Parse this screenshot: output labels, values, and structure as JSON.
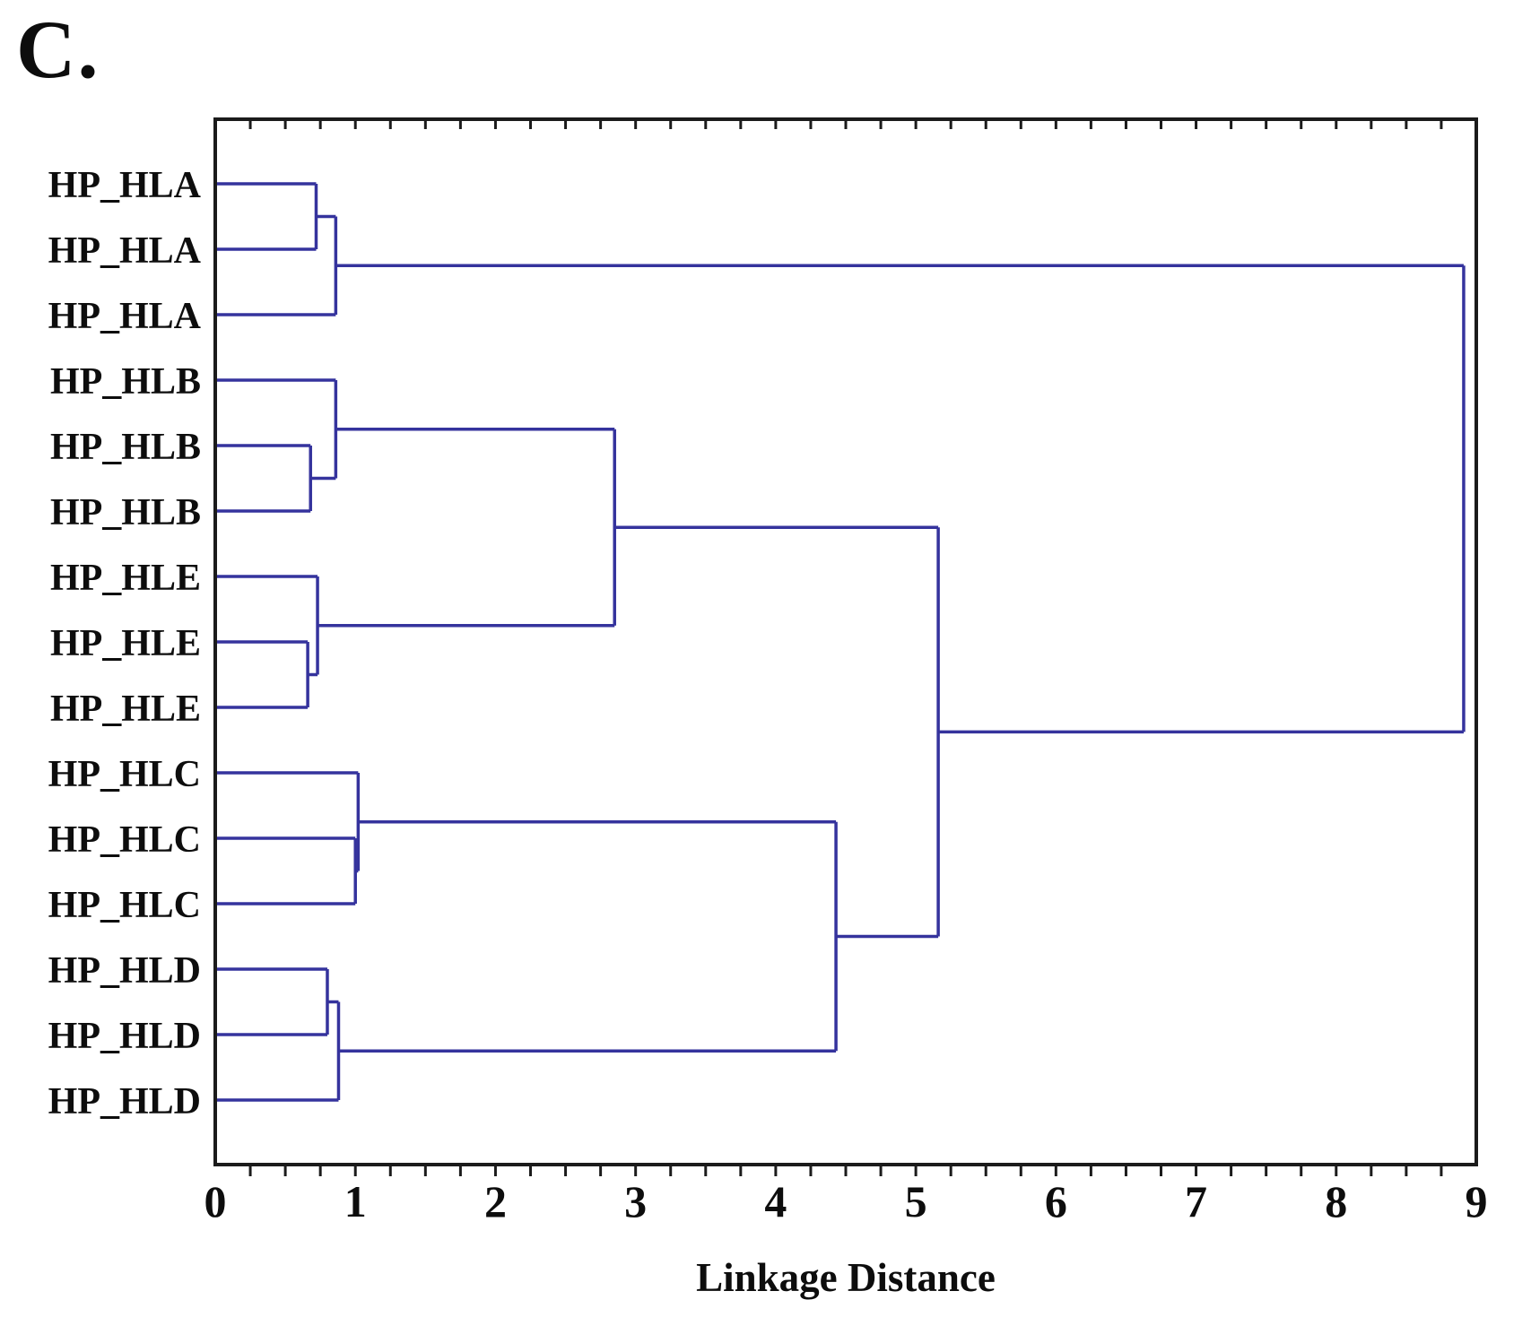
{
  "panel_label": "C.",
  "colors": {
    "link": "#35339d",
    "axis": "#1b1b1b",
    "text": "#0d0d0d",
    "background": "#ffffff"
  },
  "chart_data": {
    "type": "dendrogram",
    "orientation": "horizontal-root-right",
    "xlabel": "Linkage Distance",
    "xlim": [
      0,
      9
    ],
    "x_major_ticks": [
      0,
      1,
      2,
      3,
      4,
      5,
      6,
      7,
      8,
      9
    ],
    "x_minor_tick_step": 0.25,
    "grid": false,
    "legend": false,
    "leaves": [
      "HP_HLA",
      "HP_HLA",
      "HP_HLA",
      "HP_HLB",
      "HP_HLB",
      "HP_HLB",
      "HP_HLE",
      "HP_HLE",
      "HP_HLE",
      "HP_HLC",
      "HP_HLC",
      "HP_HLC",
      "HP_HLD",
      "HP_HLD",
      "HP_HLD"
    ],
    "merges": [
      {
        "id": "mA1",
        "a": "L0",
        "b": "L1",
        "distance": 0.72
      },
      {
        "id": "mA",
        "a": "mA1",
        "b": "L2",
        "distance": 0.86
      },
      {
        "id": "mB1",
        "a": "L4",
        "b": "L5",
        "distance": 0.68
      },
      {
        "id": "mB",
        "a": "L3",
        "b": "mB1",
        "distance": 0.86
      },
      {
        "id": "mE1",
        "a": "L7",
        "b": "L8",
        "distance": 0.66
      },
      {
        "id": "mE",
        "a": "L6",
        "b": "mE1",
        "distance": 0.73
      },
      {
        "id": "mC1",
        "a": "L10",
        "b": "L11",
        "distance": 1.0
      },
      {
        "id": "mC",
        "a": "L9",
        "b": "mC1",
        "distance": 1.02
      },
      {
        "id": "mD1",
        "a": "L12",
        "b": "L13",
        "distance": 0.8
      },
      {
        "id": "mD",
        "a": "mD1",
        "b": "L14",
        "distance": 0.88
      },
      {
        "id": "mBE",
        "a": "mB",
        "b": "mE",
        "distance": 2.85
      },
      {
        "id": "mCD",
        "a": "mC",
        "b": "mD",
        "distance": 4.43
      },
      {
        "id": "mBECD",
        "a": "mBE",
        "b": "mCD",
        "distance": 5.16
      },
      {
        "id": "root",
        "a": "mA",
        "b": "mBECD",
        "distance": 8.91
      }
    ]
  }
}
